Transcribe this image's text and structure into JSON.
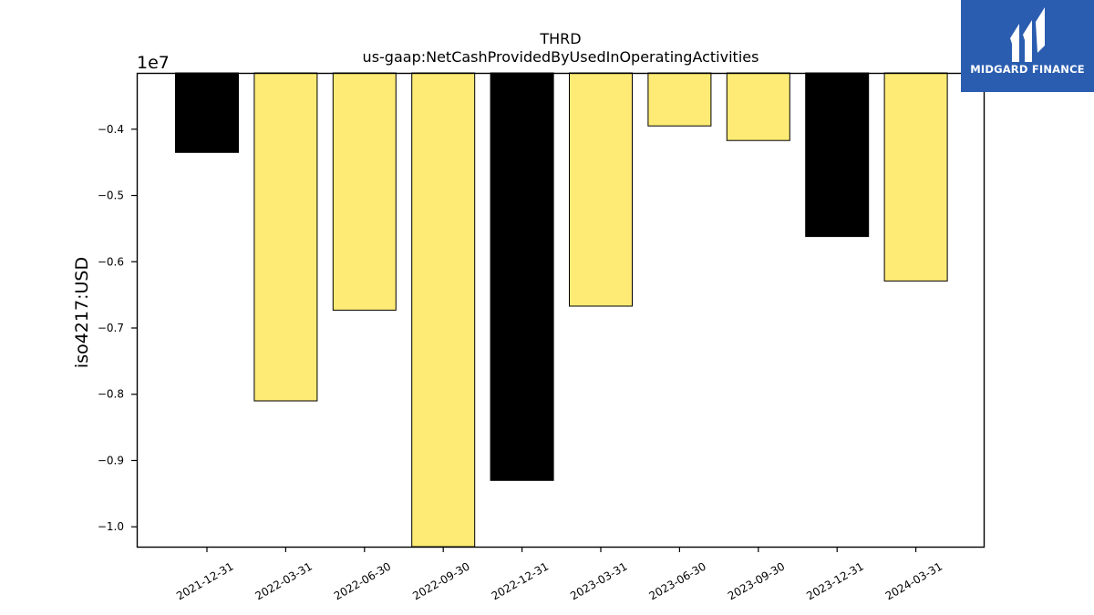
{
  "chart_data": {
    "type": "bar",
    "title": "THRD",
    "subtitle": "us-gaap:NetCashProvidedByUsedInOperatingActivities",
    "ylabel": "iso4217:USD",
    "xlabel": "",
    "offset_label": "1e7",
    "ylim": [
      -1.03,
      -0.315
    ],
    "yticks": [
      -0.4,
      -0.5,
      -0.6,
      -0.7,
      -0.8,
      -0.9,
      -1.0
    ],
    "ytick_labels": [
      "−0.4",
      "−0.5",
      "−0.6",
      "−0.7",
      "−0.8",
      "−0.9",
      "−1.0"
    ],
    "categories": [
      "2021-12-31",
      "2022-03-31",
      "2022-06-30",
      "2022-09-30",
      "2022-12-31",
      "2023-03-31",
      "2023-06-30",
      "2023-09-30",
      "2023-12-31",
      "2024-03-31"
    ],
    "values": [
      -0.435,
      -0.81,
      -0.673,
      -1.03,
      -0.93,
      -0.667,
      -0.395,
      -0.417,
      -0.562,
      -0.629
    ],
    "bar_colors": [
      "#000000",
      "#feeb75",
      "#feeb75",
      "#feeb75",
      "#000000",
      "#feeb75",
      "#feeb75",
      "#feeb75",
      "#000000",
      "#feeb75"
    ],
    "grid": false,
    "legend": "none"
  },
  "logo": {
    "text": "MIDGARD FINANCE",
    "icon": "midgard-logo-icon",
    "color": "#2a5db0"
  }
}
